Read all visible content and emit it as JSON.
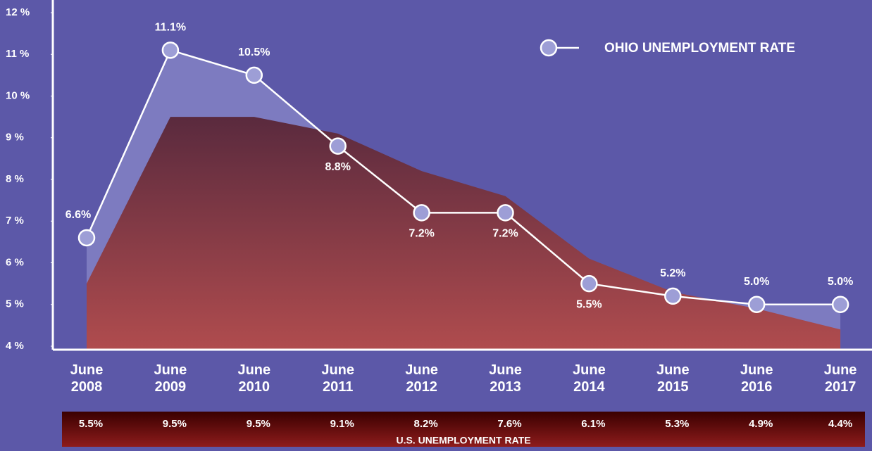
{
  "chart_data": {
    "type": "line",
    "categories": [
      "June 2008",
      "June 2009",
      "June 2010",
      "June 2011",
      "June 2012",
      "June 2013",
      "June 2014",
      "June 2015",
      "June 2016",
      "June 2017"
    ],
    "series": [
      {
        "name": "OHIO UNEMPLOYMENT RATE",
        "color": "#9d9ed6",
        "values": [
          6.6,
          11.1,
          10.5,
          8.8,
          7.2,
          7.2,
          5.5,
          5.2,
          5.0,
          5.0
        ],
        "value_labels": [
          "6.6%",
          "11.1%",
          "10.5%",
          "8.8%",
          "7.2%",
          "7.2%",
          "5.5%",
          "5.2%",
          "5.0%",
          "5.0%"
        ]
      },
      {
        "name": "U.S. UNEMPLOYMENT RATE",
        "color": "#8e1c1c",
        "values": [
          5.5,
          9.5,
          9.5,
          9.1,
          8.2,
          7.6,
          6.1,
          5.3,
          4.9,
          4.4
        ],
        "value_labels": [
          "5.5%",
          "9.5%",
          "9.5%",
          "9.1%",
          "8.2%",
          "7.6%",
          "6.1%",
          "5.3%",
          "4.9%",
          "4.4%"
        ]
      }
    ],
    "ylim": [
      4,
      12
    ],
    "yticks": [
      {
        "value": 4,
        "label": "4 %"
      },
      {
        "value": 5,
        "label": "5 %"
      },
      {
        "value": 6,
        "label": "6 %"
      },
      {
        "value": 7,
        "label": "7 %"
      },
      {
        "value": 8,
        "label": "8 %"
      },
      {
        "value": 9,
        "label": "9 %"
      },
      {
        "value": 10,
        "label": "10 %"
      },
      {
        "value": 11,
        "label": "11 %"
      },
      {
        "value": 12,
        "label": "12 %"
      }
    ]
  }
}
